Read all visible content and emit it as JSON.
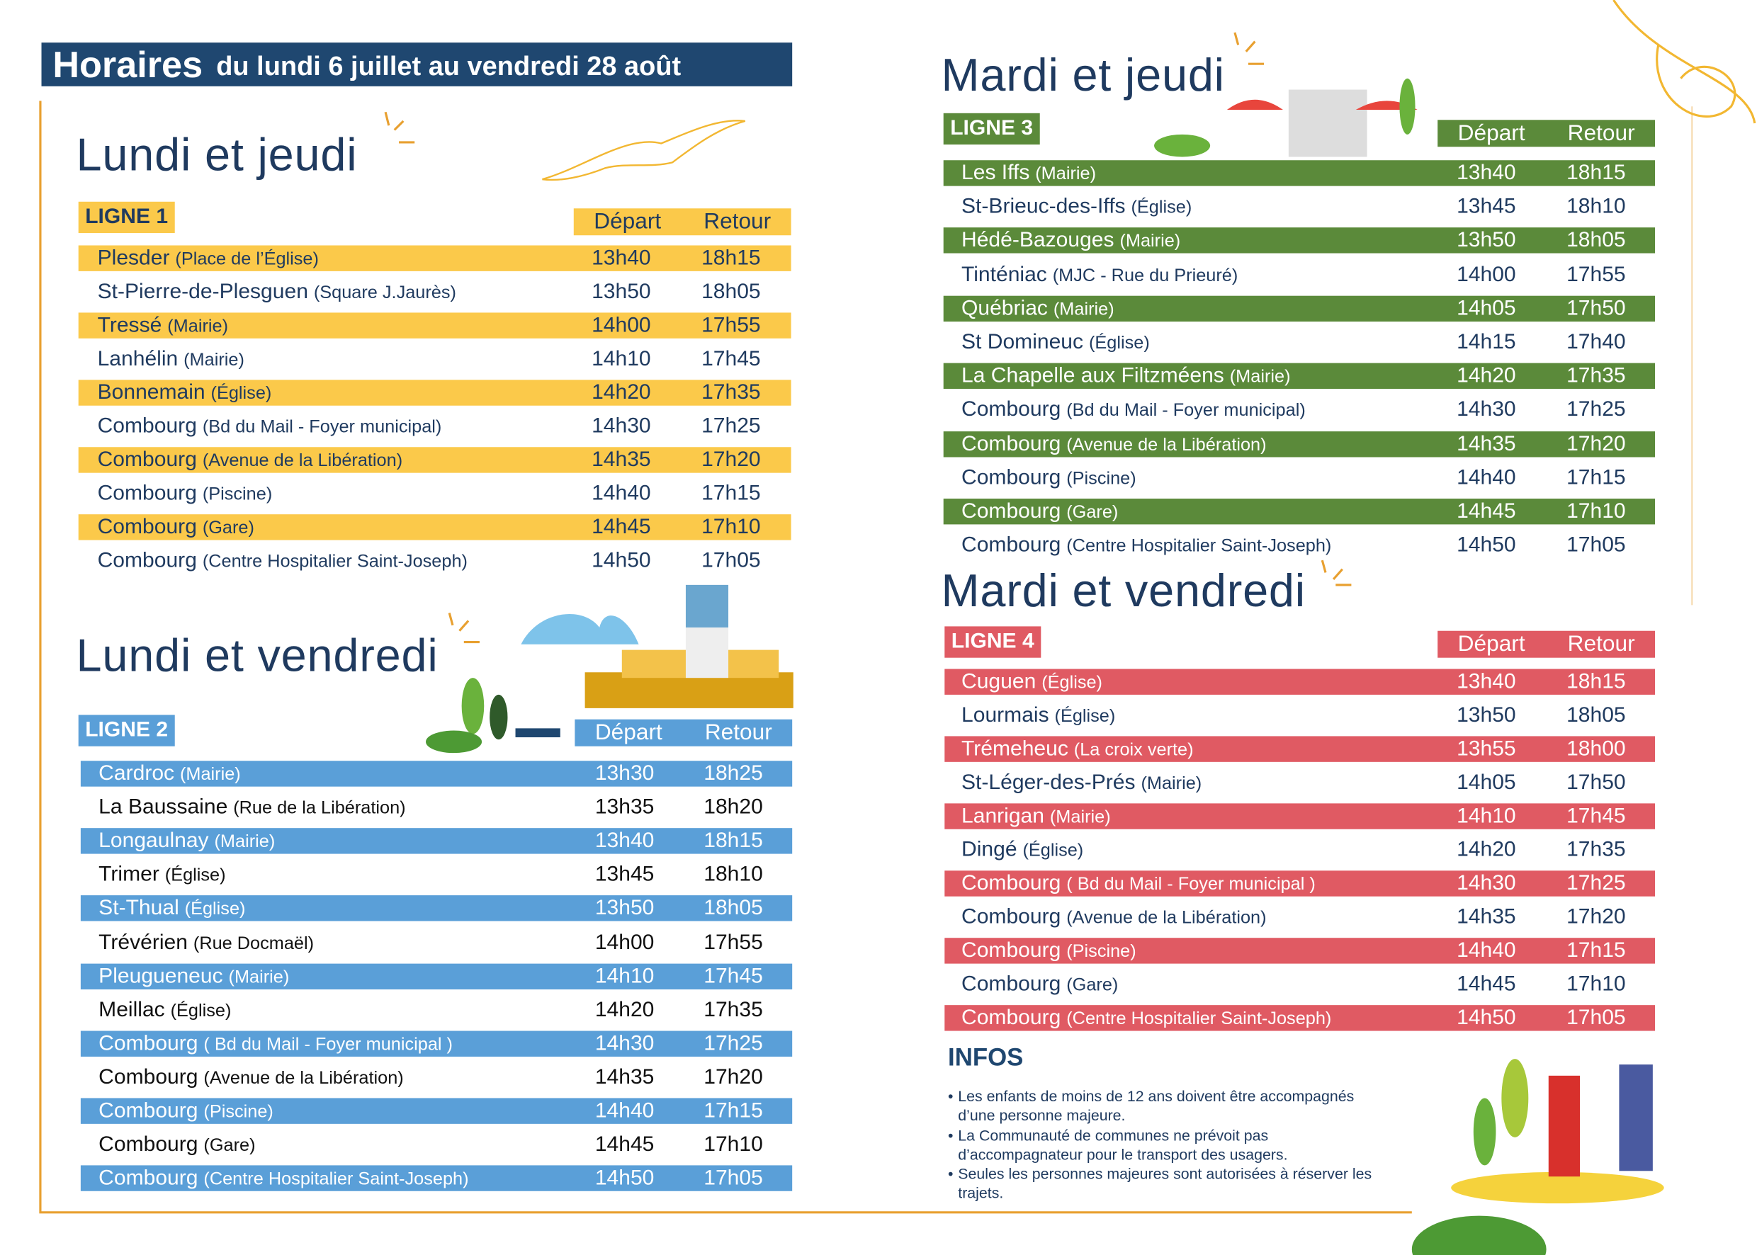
{
  "header": {
    "title": "Horaires",
    "subtitle": "du lundi 6 juillet au vendredi 28 août"
  },
  "sections": [
    {
      "heading": "Lundi et jeudi",
      "line": "LIGNE 1",
      "columns": [
        "Départ",
        "Retour"
      ],
      "rows": [
        [
          "Plesder",
          "(Place de l’Église)",
          "13h40",
          "18h15"
        ],
        [
          "St-Pierre-de-Plesguen",
          "(Square J.Jaurès)",
          "13h50",
          "18h05"
        ],
        [
          "Tressé",
          "(Mairie)",
          "14h00",
          "17h55"
        ],
        [
          "Lanhélin",
          "(Mairie)",
          "14h10",
          "17h45"
        ],
        [
          "Bonnemain",
          "(Église)",
          "14h20",
          "17h35"
        ],
        [
          "Combourg",
          "(Bd du Mail - Foyer municipal)",
          "14h30",
          "17h25"
        ],
        [
          "Combourg",
          "(Avenue de la Libération)",
          "14h35",
          "17h20"
        ],
        [
          "Combourg",
          "(Piscine)",
          "14h40",
          "17h15"
        ],
        [
          "Combourg",
          "(Gare)",
          "14h45",
          "17h10"
        ],
        [
          "Combourg",
          "(Centre Hospitalier Saint-Joseph)",
          "14h50",
          "17h05"
        ]
      ]
    },
    {
      "heading": "Lundi et vendredi",
      "line": "LIGNE 2",
      "columns": [
        "Départ",
        "Retour"
      ],
      "rows": [
        [
          "Cardroc",
          "(Mairie)",
          "13h30",
          "18h25"
        ],
        [
          "La Baussaine",
          "(Rue de la Libération)",
          "13h35",
          "18h20"
        ],
        [
          "Longaulnay",
          "(Mairie)",
          "13h40",
          "18h15"
        ],
        [
          "Trimer",
          "(Église)",
          "13h45",
          "18h10"
        ],
        [
          "St-Thual",
          "(Église)",
          "13h50",
          "18h05"
        ],
        [
          "Trévérien",
          "(Rue Docmaël)",
          "14h00",
          "17h55"
        ],
        [
          "Pleugueneuc",
          "(Mairie)",
          "14h10",
          "17h45"
        ],
        [
          "Meillac",
          "(Église)",
          "14h20",
          "17h35"
        ],
        [
          "Combourg",
          "( Bd du Mail - Foyer municipal )",
          "14h30",
          "17h25"
        ],
        [
          "Combourg",
          "(Avenue de la Libération)",
          "14h35",
          "17h20"
        ],
        [
          "Combourg",
          "(Piscine)",
          "14h40",
          "17h15"
        ],
        [
          "Combourg",
          "(Gare)",
          "14h45",
          "17h10"
        ],
        [
          "Combourg",
          "(Centre Hospitalier Saint-Joseph)",
          "14h50",
          "17h05"
        ]
      ]
    },
    {
      "heading": "Mardi et jeudi",
      "line": "LIGNE 3",
      "columns": [
        "Départ",
        "Retour"
      ],
      "rows": [
        [
          "Les Iffs",
          "(Mairie)",
          "13h40",
          "18h15"
        ],
        [
          "St-Brieuc-des-Iffs",
          "(Église)",
          "13h45",
          "18h10"
        ],
        [
          "Hédé-Bazouges",
          "(Mairie)",
          "13h50",
          "18h05"
        ],
        [
          "Tinténiac",
          "(MJC - Rue du Prieuré)",
          "14h00",
          "17h55"
        ],
        [
          "Québriac",
          "(Mairie)",
          "14h05",
          "17h50"
        ],
        [
          "St Domineuc",
          "(Église)",
          "14h15",
          "17h40"
        ],
        [
          "La Chapelle aux Filtzméens",
          "(Mairie)",
          "14h20",
          "17h35"
        ],
        [
          "Combourg",
          "(Bd du Mail - Foyer municipal)",
          "14h30",
          "17h25"
        ],
        [
          "Combourg",
          "(Avenue de la Libération)",
          "14h35",
          "17h20"
        ],
        [
          "Combourg",
          "(Piscine)",
          "14h40",
          "17h15"
        ],
        [
          "Combourg",
          "(Gare)",
          "14h45",
          "17h10"
        ],
        [
          "Combourg",
          "(Centre Hospitalier Saint-Joseph)",
          "14h50",
          "17h05"
        ]
      ]
    },
    {
      "heading": "Mardi et vendredi",
      "line": "LIGNE 4",
      "columns": [
        "Départ",
        "Retour"
      ],
      "rows": [
        [
          "Cuguen",
          "(Église)",
          "13h40",
          "18h15"
        ],
        [
          "Lourmais",
          "(Église)",
          "13h50",
          "18h05"
        ],
        [
          "Trémeheuc",
          "(La croix verte)",
          "13h55",
          "18h00"
        ],
        [
          "St-Léger-des-Prés",
          "(Mairie)",
          "14h05",
          "17h50"
        ],
        [
          "Lanrigan",
          "(Mairie)",
          "14h10",
          "17h45"
        ],
        [
          "Dingé",
          "(Église)",
          "14h20",
          "17h35"
        ],
        [
          "Combourg",
          "( Bd du Mail - Foyer municipal )",
          "14h30",
          "17h25"
        ],
        [
          "Combourg",
          "(Avenue de la Libération)",
          "14h35",
          "17h20"
        ],
        [
          "Combourg",
          "(Piscine)",
          "14h40",
          "17h15"
        ],
        [
          "Combourg",
          "(Gare)",
          "14h45",
          "17h10"
        ],
        [
          "Combourg",
          "(Centre Hospitalier Saint-Joseph)",
          "14h50",
          "17h05"
        ]
      ]
    }
  ],
  "infos": {
    "title": "INFOS",
    "items": [
      "Les enfants de moins de 12 ans doivent être accompagnés d’une personne majeure.",
      "La Communauté de communes ne prévoit pas d’accompagnateur pour le transport des usagers.",
      "Seules les personnes majeures sont autorisées à réserver les trajets."
    ]
  }
}
